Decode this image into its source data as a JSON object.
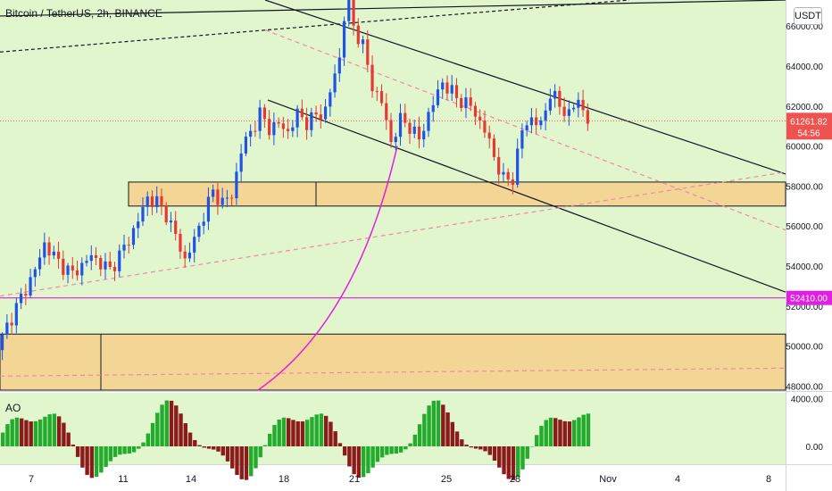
{
  "title": "Bitcoin / TetherUS, 2h, BINANCE",
  "currency": "USDT",
  "ao_label": "AO",
  "chart_data": {
    "type": "candlestick",
    "symbol": "Bitcoin / TetherUS",
    "interval": "2h",
    "exchange": "BINANCE",
    "ylim": [
      47800,
      67300
    ],
    "y_ticks": [
      48000,
      50000,
      52000,
      54000,
      56000,
      58000,
      60000,
      62000,
      64000,
      66000
    ],
    "x_tick_labels": [
      "7",
      "11",
      "14",
      "18",
      "21",
      "25",
      "28",
      "Nov",
      "4",
      "8"
    ],
    "current_price": 61261.82,
    "current_price_label": "61261.82",
    "countdown": "54:56",
    "level_line": 52410,
    "level_label": "52410.00",
    "ao": {
      "name": "AO",
      "ticks": [
        "4000.00",
        "0.00"
      ],
      "ylim": [
        -1500,
        4500
      ]
    },
    "close_path": [
      [
        0,
        49800
      ],
      [
        2,
        51000
      ],
      [
        5,
        52400
      ],
      [
        8,
        53800
      ],
      [
        10,
        55100
      ],
      [
        13,
        54200
      ],
      [
        16,
        53600
      ],
      [
        20,
        54500
      ],
      [
        24,
        53800
      ],
      [
        28,
        55300
      ],
      [
        30,
        56300
      ],
      [
        32,
        57400
      ],
      [
        34,
        57200
      ],
      [
        36,
        56600
      ],
      [
        38,
        55500
      ],
      [
        40,
        54300
      ],
      [
        42,
        55300
      ],
      [
        44,
        56600
      ],
      [
        46,
        57700
      ],
      [
        48,
        57200
      ],
      [
        50,
        57500
      ],
      [
        52,
        59800
      ],
      [
        54,
        60700
      ],
      [
        56,
        61600
      ],
      [
        58,
        60900
      ],
      [
        60,
        61100
      ],
      [
        62,
        60700
      ],
      [
        64,
        61600
      ],
      [
        66,
        61200
      ],
      [
        68,
        61500
      ],
      [
        70,
        61800
      ],
      [
        72,
        63600
      ],
      [
        73,
        64400
      ],
      [
        74,
        66500
      ],
      [
        75,
        67000
      ],
      [
        76,
        66000
      ],
      [
        78,
        65000
      ],
      [
        80,
        63000
      ],
      [
        82,
        62200
      ],
      [
        84,
        60200
      ],
      [
        86,
        61300
      ],
      [
        88,
        61000
      ],
      [
        90,
        60300
      ],
      [
        92,
        61600
      ],
      [
        95,
        63200
      ],
      [
        98,
        62400
      ],
      [
        101,
        62000
      ],
      [
        104,
        60800
      ],
      [
        106,
        59500
      ],
      [
        108,
        58300
      ],
      [
        110,
        58400
      ],
      [
        112,
        60800
      ],
      [
        114,
        61400
      ],
      [
        116,
        61000
      ],
      [
        118,
        62700
      ],
      [
        120,
        62000
      ],
      [
        122,
        61600
      ],
      [
        124,
        62300
      ],
      [
        126,
        61300
      ]
    ]
  }
}
